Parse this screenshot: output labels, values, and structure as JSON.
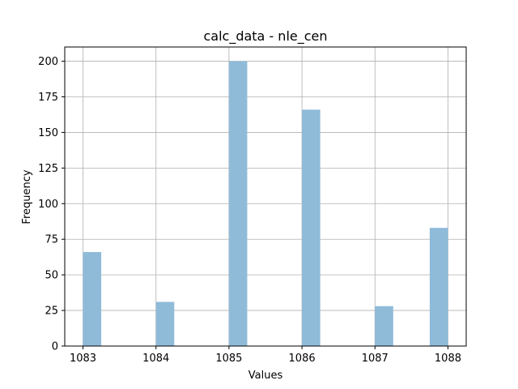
{
  "chart_data": {
    "type": "bar",
    "title": "calc_data - nle_cen",
    "xlabel": "Values",
    "ylabel": "Frequency",
    "xlim": [
      1082.75,
      1088.25
    ],
    "ylim": [
      0,
      210
    ],
    "grid": true,
    "bar_color": "#8fbbd9",
    "bin_edges": [
      1083.0,
      1083.25,
      1083.5,
      1083.75,
      1084.0,
      1084.25,
      1084.5,
      1084.75,
      1085.0,
      1085.25,
      1085.5,
      1085.75,
      1086.0,
      1086.25,
      1086.5,
      1086.75,
      1087.0,
      1087.25,
      1087.5,
      1087.75,
      1088.0
    ],
    "values": [
      66,
      0,
      0,
      0,
      31,
      0,
      0,
      0,
      200,
      0,
      0,
      0,
      166,
      0,
      0,
      0,
      28,
      0,
      0,
      83
    ],
    "xticks": [
      1083,
      1084,
      1085,
      1086,
      1087,
      1088
    ],
    "yticks": [
      0,
      25,
      50,
      75,
      100,
      125,
      150,
      175,
      200
    ]
  }
}
